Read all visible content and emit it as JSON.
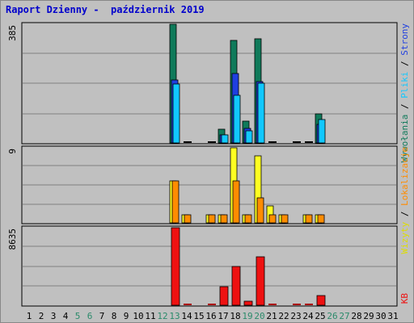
{
  "title": "Raport Dzienny -  październik 2019",
  "colors": {
    "wywolania": "#0f7a5a",
    "strony": "#1f3fe0",
    "pliki": "#11c8ff",
    "lokalizacje": "#ff8c00",
    "wizyty": "#ffff22",
    "kb": "#ee1111",
    "weekend": "#2a8a6a"
  },
  "chart_data": [
    {
      "type": "bar",
      "panel": "top",
      "ylabel": "385",
      "ylim": [
        0,
        385
      ],
      "legend": [
        "Wywołania",
        "Strony",
        "Pliki"
      ],
      "categories": [
        "1",
        "2",
        "3",
        "4",
        "5",
        "6",
        "7",
        "8",
        "9",
        "10",
        "11",
        "12",
        "13",
        "14",
        "15",
        "16",
        "17",
        "18",
        "19",
        "20",
        "21",
        "22",
        "23",
        "24",
        "25",
        "26",
        "27",
        "28",
        "29",
        "30",
        "31"
      ],
      "series": [
        {
          "name": "Wywołania",
          "values": [
            0,
            0,
            0,
            0,
            0,
            0,
            0,
            0,
            0,
            0,
            0,
            0,
            385,
            3,
            0,
            2,
            45,
            333,
            70,
            337,
            2,
            0,
            2,
            4,
            95,
            0,
            0,
            0,
            0,
            0,
            0
          ]
        },
        {
          "name": "Strony",
          "values": [
            0,
            0,
            0,
            0,
            0,
            0,
            0,
            0,
            0,
            0,
            0,
            0,
            205,
            2,
            0,
            1,
            25,
            225,
            48,
            200,
            1,
            0,
            1,
            3,
            60,
            0,
            0,
            0,
            0,
            0,
            0
          ]
        },
        {
          "name": "Pliki",
          "values": [
            0,
            0,
            0,
            0,
            0,
            0,
            0,
            0,
            0,
            0,
            0,
            0,
            190,
            1,
            0,
            1,
            25,
            155,
            38,
            195,
            1,
            0,
            1,
            2,
            75,
            0,
            0,
            0,
            0,
            0,
            0
          ]
        }
      ]
    },
    {
      "type": "bar",
      "panel": "middle",
      "ylabel": "9",
      "ylim": [
        0,
        9
      ],
      "legend": [
        "Lokalizacje",
        "Wizyty"
      ],
      "series": [
        {
          "name": "Wizyty",
          "values": [
            0,
            0,
            0,
            0,
            0,
            0,
            0,
            0,
            0,
            0,
            0,
            0,
            5,
            1,
            0,
            1,
            1,
            9,
            1,
            8,
            2,
            1,
            0,
            1,
            1,
            0,
            0,
            0,
            0,
            0,
            0
          ]
        },
        {
          "name": "Lokalizacje",
          "values": [
            0,
            0,
            0,
            0,
            0,
            0,
            0,
            0,
            0,
            0,
            0,
            0,
            5,
            1,
            0,
            1,
            1,
            5,
            1,
            3,
            1,
            1,
            0,
            1,
            1,
            0,
            0,
            0,
            0,
            0,
            0
          ]
        }
      ]
    },
    {
      "type": "bar",
      "panel": "bottom",
      "ylabel": "8635",
      "ylim": [
        0,
        8635
      ],
      "legend": [
        "KB"
      ],
      "series": [
        {
          "name": "KB",
          "values": [
            0,
            0,
            0,
            0,
            0,
            0,
            0,
            0,
            0,
            0,
            0,
            0,
            8635,
            130,
            0,
            130,
            2100,
            4300,
            420,
            5400,
            100,
            0,
            90,
            130,
            1100,
            0,
            0,
            0,
            0,
            0,
            0
          ]
        }
      ]
    }
  ],
  "weekend_days": [
    "5",
    "6",
    "12",
    "13",
    "19",
    "20",
    "26",
    "27"
  ],
  "legend_text": {
    "top": [
      {
        "text": "Wywołania",
        "color": "#0f7a5a"
      },
      {
        "text": " / ",
        "color": "#000000"
      },
      {
        "text": "Pliki",
        "color": "#11c8ff"
      },
      {
        "text": " / ",
        "color": "#000000"
      },
      {
        "text": "Strony",
        "color": "#1f3fe0"
      }
    ],
    "middle": [
      {
        "text": "Wizyty",
        "color": "#dddd00"
      },
      {
        "text": " / ",
        "color": "#000000"
      },
      {
        "text": "Lokalizacje",
        "color": "#ff8c00"
      }
    ],
    "bottom": [
      {
        "text": "KB",
        "color": "#ee1111"
      }
    ]
  }
}
